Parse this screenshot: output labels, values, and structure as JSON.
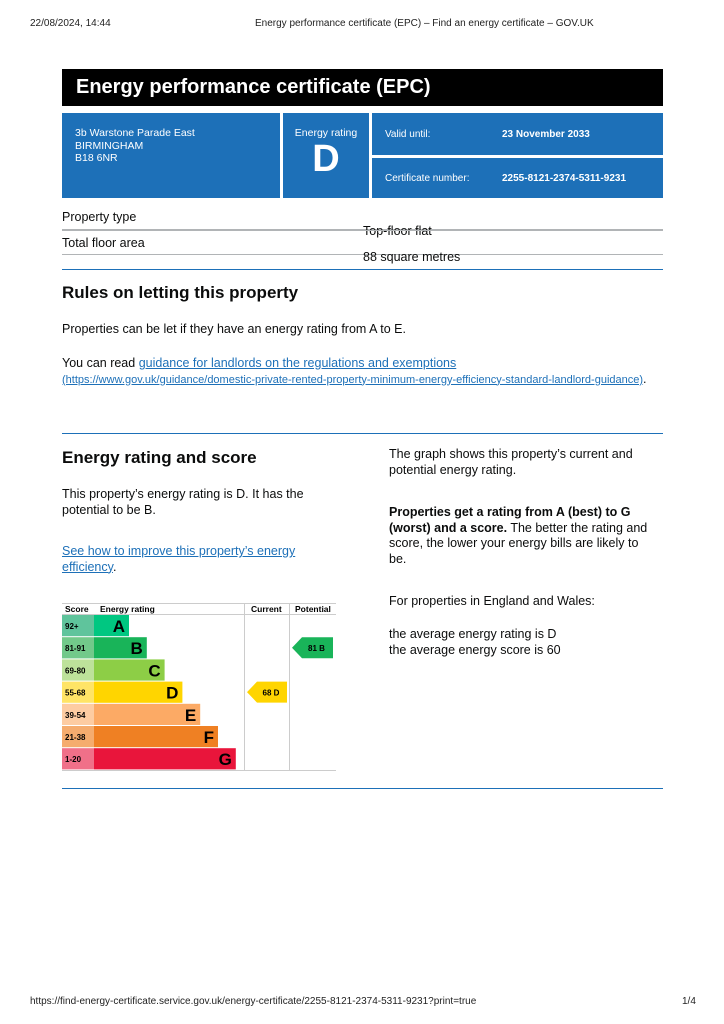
{
  "print_header": {
    "date": "22/08/2024, 14:44",
    "title": "Energy performance certificate (EPC) – Find an energy certificate – GOV.UK"
  },
  "print_footer": {
    "url": "https://find-energy-certificate.service.gov.uk/energy-certificate/2255-8121-2374-5311-9231?print=true",
    "page": "1/4"
  },
  "title": "Energy performance certificate (EPC)",
  "address": [
    "3b Warstone Parade East",
    "BIRMINGHAM",
    "B18 6NR"
  ],
  "energy_rating": {
    "label": "Energy rating",
    "value": "D"
  },
  "valid_until": {
    "label": "Valid until:",
    "value": "23 November 2033"
  },
  "certificate_number": {
    "label": "Certificate number:",
    "value": "2255-8121-2374-5311-9231"
  },
  "property": [
    {
      "label": "Property type",
      "value": "Top-floor flat"
    },
    {
      "label": "Total floor area",
      "value": "88 square metres"
    }
  ],
  "letting": {
    "heading": "Rules on letting this property",
    "p1": "Properties can be let if they have an energy rating from A to E.",
    "p2_prefix": "You can read ",
    "link": "guidance for landlords on the regulations and exemptions",
    "link_url": "(https://www.gov.uk/guidance/domestic-private-rented-property-minimum-energy-efficiency-standard-landlord-guidance)",
    "p2_suffix": "."
  },
  "score": {
    "heading": "Energy rating and score",
    "p1": "This property’s energy rating is D. It has the potential to be B.",
    "link": "See how to improve this property’s energy efficiency",
    "link_suffix": ".",
    "right_p1": "The graph shows this property’s current and potential energy rating.",
    "right_bold": "Properties get a rating from A (best) to G (worst) and a score.",
    "right_p2": " The better the rating and score, the lower your energy bills are likely to be.",
    "right_p3": "For properties in England and Wales:",
    "avg_rating": "the average energy rating is D",
    "avg_score": "the average energy score is 60"
  },
  "chart_data": {
    "type": "bar",
    "headers": [
      "Score",
      "Energy rating",
      "Current",
      "Potential"
    ],
    "bands": [
      {
        "letter": "A",
        "range": "92+",
        "color": "#00c781",
        "score_bg": "#5fc49c"
      },
      {
        "letter": "B",
        "range": "81-91",
        "color": "#19b459",
        "score_bg": "#72c98a"
      },
      {
        "letter": "C",
        "range": "69-80",
        "color": "#8dce46",
        "score_bg": "#bde29a"
      },
      {
        "letter": "D",
        "range": "55-68",
        "color": "#ffd500",
        "score_bg": "#ffe466"
      },
      {
        "letter": "E",
        "range": "39-54",
        "color": "#fcaa65",
        "score_bg": "#fdcca2"
      },
      {
        "letter": "F",
        "range": "21-38",
        "color": "#ef8023",
        "score_bg": "#f5ac6e"
      },
      {
        "letter": "G",
        "range": "1-20",
        "color": "#e9153b",
        "score_bg": "#f07089"
      }
    ],
    "current": {
      "score": 68,
      "band": "D",
      "label": "68  D"
    },
    "potential": {
      "score": 81,
      "band": "B",
      "label": "81  B"
    }
  }
}
